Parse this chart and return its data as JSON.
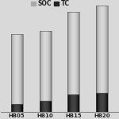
{
  "categories": [
    "HB05",
    "HB10",
    "HB15",
    "HB20"
  ],
  "soc_values": [
    72,
    72,
    85,
    90
  ],
  "tc_values": [
    8,
    12,
    18,
    20
  ],
  "soc_color_main": "#b0b0b0",
  "soc_color_light": "#d8d8d8",
  "soc_color_dark": "#888888",
  "tc_color_main": "#1a1a1a",
  "tc_color_light": "#444444",
  "tc_color_dark": "#000000",
  "legend_dot_soc": "#aaaaaa",
  "legend_dot_tc": "#222222",
  "bar_width": 0.42,
  "background_color": "#d9d9d9",
  "legend_fontsize": 5.5,
  "tick_fontsize": 5.0,
  "ylim": [
    0,
    110
  ]
}
